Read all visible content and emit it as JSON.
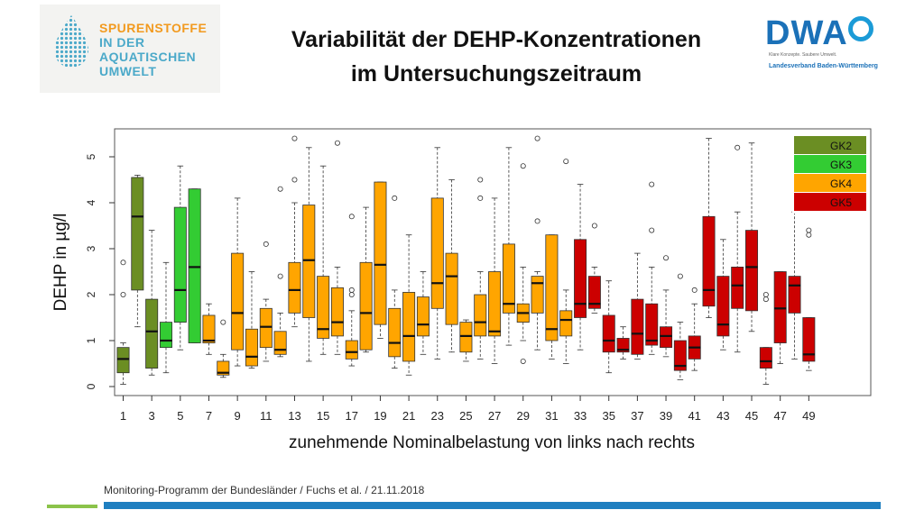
{
  "header": {
    "title_line1": "Variabilität der DEHP-Konzentrationen",
    "title_line2": "im Untersuchungszeitraum"
  },
  "logo_left": {
    "line1": "SPURENSTOFFE",
    "line2": "IN DER",
    "line3": "AQUATISCHEN",
    "line4": "UMWELT"
  },
  "logo_right": {
    "name": "DWA",
    "tagline": "Klare Konzepte. Saubere Umwelt.",
    "subtitle": "Landesverband Baden-Württemberg"
  },
  "footer": {
    "text": "Monitoring-Programm der Bundesländer / Fuchs et al. / 21.11.2018"
  },
  "colors": {
    "GK2": "#6b8e23",
    "GK3": "#33cc33",
    "GK4": "#ffa500",
    "GK5": "#cc0000"
  },
  "chart_data": {
    "type": "box",
    "xlabel": "zunehmende Nominalbelastung von links nach rechts",
    "ylabel": "DEHP in µg/l",
    "ylim": [
      0,
      5.5
    ],
    "yticks": [
      "0",
      "1",
      "2",
      "3",
      "4",
      "5"
    ],
    "xticks": [
      "1",
      "3",
      "5",
      "7",
      "9",
      "11",
      "13",
      "15",
      "17",
      "19",
      "21",
      "23",
      "25",
      "27",
      "29",
      "31",
      "33",
      "35",
      "37",
      "39",
      "41",
      "43",
      "45",
      "47",
      "49"
    ],
    "legend": {
      "position": "top-right",
      "entries": [
        "GK2",
        "GK3",
        "GK4",
        "GK5"
      ]
    },
    "boxes": [
      {
        "x": 1,
        "group": "GK2",
        "lo": 0.05,
        "q1": 0.3,
        "med": 0.6,
        "q3": 0.85,
        "hi": 0.95,
        "out": [
          2.0,
          2.7
        ]
      },
      {
        "x": 2,
        "group": "GK2",
        "lo": 1.3,
        "q1": 2.1,
        "med": 3.7,
        "q3": 4.55,
        "hi": 4.6,
        "out": []
      },
      {
        "x": 3,
        "group": "GK2",
        "lo": 0.25,
        "q1": 0.4,
        "med": 1.2,
        "q3": 1.9,
        "hi": 3.4,
        "out": []
      },
      {
        "x": 4,
        "group": "GK3",
        "lo": 0.3,
        "q1": 0.85,
        "med": 1.0,
        "q3": 1.4,
        "hi": 2.7,
        "out": []
      },
      {
        "x": 5,
        "group": "GK3",
        "lo": 0.8,
        "q1": 1.4,
        "med": 2.1,
        "q3": 3.9,
        "hi": 4.8,
        "out": []
      },
      {
        "x": 6,
        "group": "GK3",
        "lo": 0.95,
        "q1": 0.95,
        "med": 2.6,
        "q3": 4.3,
        "hi": 4.3,
        "out": []
      },
      {
        "x": 7,
        "group": "GK4",
        "lo": 0.7,
        "q1": 0.95,
        "med": 1.0,
        "q3": 1.55,
        "hi": 1.8,
        "out": []
      },
      {
        "x": 8,
        "group": "GK4",
        "lo": 0.2,
        "q1": 0.25,
        "med": 0.3,
        "q3": 0.55,
        "hi": 0.7,
        "out": [
          1.4
        ]
      },
      {
        "x": 9,
        "group": "GK4",
        "lo": 0.45,
        "q1": 0.8,
        "med": 1.6,
        "q3": 2.9,
        "hi": 4.1,
        "out": []
      },
      {
        "x": 10,
        "group": "GK4",
        "lo": 0.4,
        "q1": 0.45,
        "med": 0.65,
        "q3": 1.25,
        "hi": 2.5,
        "out": []
      },
      {
        "x": 11,
        "group": "GK4",
        "lo": 0.55,
        "q1": 0.85,
        "med": 1.3,
        "q3": 1.7,
        "hi": 1.9,
        "out": [
          3.1
        ]
      },
      {
        "x": 12,
        "group": "GK4",
        "lo": 0.65,
        "q1": 0.7,
        "med": 0.8,
        "q3": 1.2,
        "hi": 1.6,
        "out": [
          2.4,
          4.3
        ]
      },
      {
        "x": 13,
        "group": "GK4",
        "lo": 1.3,
        "q1": 1.6,
        "med": 2.1,
        "q3": 2.7,
        "hi": 4.0,
        "out": [
          4.5,
          5.4
        ]
      },
      {
        "x": 14,
        "group": "GK4",
        "lo": 0.55,
        "q1": 1.5,
        "med": 2.75,
        "q3": 3.95,
        "hi": 5.2,
        "out": []
      },
      {
        "x": 15,
        "group": "GK4",
        "lo": 0.7,
        "q1": 1.05,
        "med": 1.25,
        "q3": 2.4,
        "hi": 4.8,
        "out": []
      },
      {
        "x": 16,
        "group": "GK4",
        "lo": 0.7,
        "q1": 1.1,
        "med": 1.4,
        "q3": 2.15,
        "hi": 2.6,
        "out": [
          5.3
        ]
      },
      {
        "x": 17,
        "group": "GK4",
        "lo": 0.45,
        "q1": 0.6,
        "med": 0.75,
        "q3": 1.0,
        "hi": 1.65,
        "out": [
          2.0,
          2.1,
          3.7
        ]
      },
      {
        "x": 18,
        "group": "GK4",
        "lo": 0.75,
        "q1": 0.8,
        "med": 1.6,
        "q3": 2.7,
        "hi": 3.9,
        "out": []
      },
      {
        "x": 19,
        "group": "GK4",
        "lo": 1.05,
        "q1": 1.35,
        "med": 2.65,
        "q3": 4.45,
        "hi": 4.45,
        "out": []
      },
      {
        "x": 20,
        "group": "GK4",
        "lo": 0.4,
        "q1": 0.65,
        "med": 0.95,
        "q3": 1.7,
        "hi": 2.1,
        "out": [
          4.1
        ]
      },
      {
        "x": 21,
        "group": "GK4",
        "lo": 0.25,
        "q1": 0.55,
        "med": 1.1,
        "q3": 2.05,
        "hi": 3.3,
        "out": []
      },
      {
        "x": 22,
        "group": "GK4",
        "lo": 0.7,
        "q1": 1.1,
        "med": 1.35,
        "q3": 1.95,
        "hi": 2.5,
        "out": []
      },
      {
        "x": 23,
        "group": "GK4",
        "lo": 0.6,
        "q1": 1.7,
        "med": 2.25,
        "q3": 4.1,
        "hi": 5.2,
        "out": []
      },
      {
        "x": 24,
        "group": "GK4",
        "lo": 0.75,
        "q1": 1.35,
        "med": 2.4,
        "q3": 2.9,
        "hi": 4.5,
        "out": []
      },
      {
        "x": 25,
        "group": "GK4",
        "lo": 0.55,
        "q1": 0.75,
        "med": 1.1,
        "q3": 1.4,
        "hi": 1.45,
        "out": []
      },
      {
        "x": 26,
        "group": "GK4",
        "lo": 0.6,
        "q1": 1.1,
        "med": 1.4,
        "q3": 2.0,
        "hi": 2.5,
        "out": [
          4.1,
          4.5
        ]
      },
      {
        "x": 27,
        "group": "GK4",
        "lo": 0.5,
        "q1": 1.1,
        "med": 1.2,
        "q3": 2.5,
        "hi": 4.1,
        "out": []
      },
      {
        "x": 28,
        "group": "GK4",
        "lo": 0.9,
        "q1": 1.6,
        "med": 1.8,
        "q3": 3.1,
        "hi": 5.2,
        "out": []
      },
      {
        "x": 29,
        "group": "GK4",
        "lo": 1.0,
        "q1": 1.4,
        "med": 1.6,
        "q3": 1.8,
        "hi": 2.6,
        "out": [
          0.55,
          4.8
        ]
      },
      {
        "x": 30,
        "group": "GK4",
        "lo": 0.8,
        "q1": 1.6,
        "med": 2.25,
        "q3": 2.4,
        "hi": 2.5,
        "out": [
          3.6,
          5.4
        ]
      },
      {
        "x": 31,
        "group": "GK4",
        "lo": 0.6,
        "q1": 1.0,
        "med": 1.25,
        "q3": 3.3,
        "hi": 3.3,
        "out": []
      },
      {
        "x": 32,
        "group": "GK4",
        "lo": 0.5,
        "q1": 1.1,
        "med": 1.45,
        "q3": 1.65,
        "hi": 2.1,
        "out": [
          4.9
        ]
      },
      {
        "x": 33,
        "group": "GK5",
        "lo": 0.8,
        "q1": 1.5,
        "med": 1.8,
        "q3": 3.2,
        "hi": 4.4,
        "out": []
      },
      {
        "x": 34,
        "group": "GK5",
        "lo": 1.6,
        "q1": 1.7,
        "med": 1.8,
        "q3": 2.4,
        "hi": 2.6,
        "out": [
          3.5
        ]
      },
      {
        "x": 35,
        "group": "GK5",
        "lo": 0.3,
        "q1": 0.75,
        "med": 1.0,
        "q3": 1.55,
        "hi": 2.3,
        "out": []
      },
      {
        "x": 36,
        "group": "GK5",
        "lo": 0.6,
        "q1": 0.75,
        "med": 0.8,
        "q3": 1.05,
        "hi": 1.3,
        "out": []
      },
      {
        "x": 37,
        "group": "GK5",
        "lo": 0.6,
        "q1": 0.7,
        "med": 1.15,
        "q3": 1.9,
        "hi": 2.9,
        "out": []
      },
      {
        "x": 38,
        "group": "GK5",
        "lo": 0.7,
        "q1": 0.9,
        "med": 1.0,
        "q3": 1.8,
        "hi": 2.6,
        "out": [
          3.4,
          4.4
        ]
      },
      {
        "x": 39,
        "group": "GK5",
        "lo": 0.65,
        "q1": 0.85,
        "med": 1.1,
        "q3": 1.3,
        "hi": 2.1,
        "out": [
          2.8
        ]
      },
      {
        "x": 40,
        "group": "GK5",
        "lo": 0.15,
        "q1": 0.35,
        "med": 0.45,
        "q3": 1.0,
        "hi": 1.4,
        "out": [
          2.4
        ]
      },
      {
        "x": 41,
        "group": "GK5",
        "lo": 0.35,
        "q1": 0.6,
        "med": 0.85,
        "q3": 1.1,
        "hi": 1.8,
        "out": [
          2.1
        ]
      },
      {
        "x": 42,
        "group": "GK5",
        "lo": 1.5,
        "q1": 1.75,
        "med": 2.1,
        "q3": 3.7,
        "hi": 5.4,
        "out": []
      },
      {
        "x": 43,
        "group": "GK5",
        "lo": 0.8,
        "q1": 1.1,
        "med": 1.35,
        "q3": 2.4,
        "hi": 3.2,
        "out": []
      },
      {
        "x": 44,
        "group": "GK5",
        "lo": 0.75,
        "q1": 1.7,
        "med": 2.2,
        "q3": 2.6,
        "hi": 3.8,
        "out": [
          5.2
        ]
      },
      {
        "x": 45,
        "group": "GK5",
        "lo": 1.2,
        "q1": 1.65,
        "med": 2.6,
        "q3": 3.4,
        "hi": 5.3,
        "out": []
      },
      {
        "x": 46,
        "group": "GK5",
        "lo": 0.05,
        "q1": 0.4,
        "med": 0.55,
        "q3": 0.85,
        "hi": 0.85,
        "out": [
          1.9,
          2.0
        ]
      },
      {
        "x": 47,
        "group": "GK5",
        "lo": 0.5,
        "q1": 0.95,
        "med": 1.7,
        "q3": 2.5,
        "hi": 2.5,
        "out": []
      },
      {
        "x": 48,
        "group": "GK5",
        "lo": 0.6,
        "q1": 1.6,
        "med": 2.2,
        "q3": 2.4,
        "hi": 3.8,
        "out": []
      },
      {
        "x": 49,
        "group": "GK5",
        "lo": 0.35,
        "q1": 0.55,
        "med": 0.7,
        "q3": 1.5,
        "hi": 1.5,
        "out": [
          3.3,
          3.4
        ]
      }
    ]
  }
}
